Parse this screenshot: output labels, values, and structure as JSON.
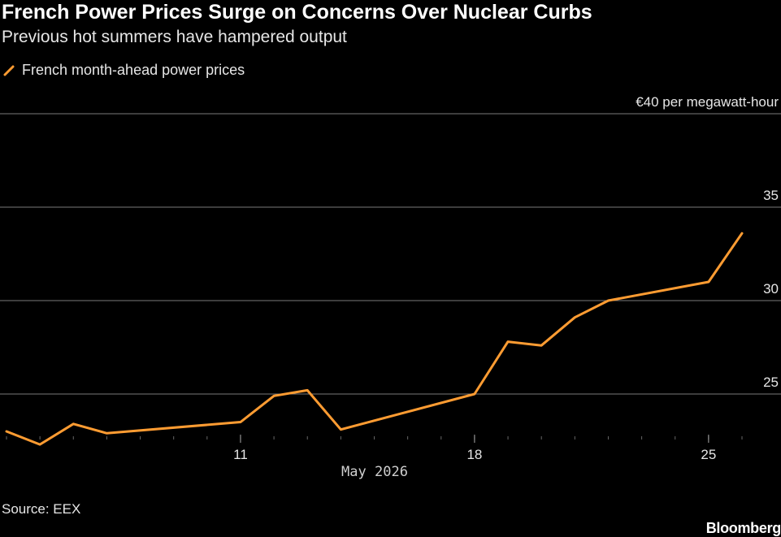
{
  "chart_data": {
    "type": "line",
    "title": "French Power Prices Surge on Concerns Over Nuclear Curbs",
    "subtitle": "Previous hot summers have hampered output",
    "series": [
      {
        "name": "French month-ahead power prices",
        "color": "#ff9c32",
        "x": [
          "2026-05-04",
          "2026-05-05",
          "2026-05-06",
          "2026-05-07",
          "2026-05-11",
          "2026-05-12",
          "2026-05-13",
          "2026-05-14",
          "2026-05-18",
          "2026-05-19",
          "2026-05-20",
          "2026-05-21",
          "2026-05-22",
          "2026-05-25",
          "2026-05-26"
        ],
        "values": [
          23.0,
          22.3,
          23.4,
          22.9,
          23.5,
          24.9,
          25.2,
          23.1,
          25.0,
          27.8,
          27.6,
          29.1,
          30.0,
          31.0,
          33.6
        ]
      }
    ],
    "xlabel": "May 2026",
    "x_ticks": [
      {
        "date": "2026-05-11",
        "label": "11"
      },
      {
        "date": "2026-05-18",
        "label": "18"
      },
      {
        "date": "2026-05-25",
        "label": "25"
      }
    ],
    "y_ticks": [
      25,
      30,
      35,
      40
    ],
    "y_top_label": "€40 per megawatt-hour",
    "ylim": [
      22,
      40
    ],
    "xlim": [
      "2026-05-04",
      "2026-05-26"
    ],
    "grid": true,
    "legend_position": "top-left"
  },
  "source": "Source: EEX",
  "brand": "Bloomberg"
}
